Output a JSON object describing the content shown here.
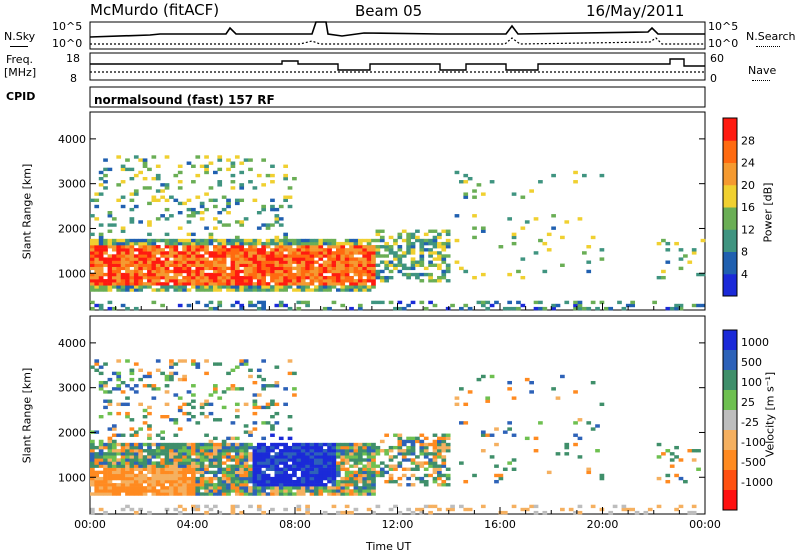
{
  "header": {
    "station": "McMurdo (fitACF)",
    "beam": "Beam 05",
    "date": "16/May/2011"
  },
  "noise_panel": {
    "left_label": "N.Sky",
    "right_label": "N.Search",
    "left_ticks": [
      "10^5",
      "10^0"
    ],
    "right_ticks": [
      "10^5",
      "10^0"
    ]
  },
  "freq_panel": {
    "left_label_line1": "Freq.",
    "left_label_line2": "[MHz]",
    "right_label": "Nave",
    "left_ticks": [
      "18",
      "8"
    ],
    "right_ticks": [
      "60",
      "0"
    ]
  },
  "cpid": {
    "label": "CPID",
    "value": "normalsound (fast) 157 RF"
  },
  "chart_data": [
    {
      "type": "heatmap",
      "name": "power",
      "ylabel": "Slant Range [km]",
      "ylim": [
        180,
        4600
      ],
      "yticks": [
        "4000",
        "3000",
        "2000",
        "1000"
      ],
      "xlim": [
        "00:00",
        "24:00"
      ],
      "colorbar": {
        "label": "Power [dB]",
        "ticks": [
          "28",
          "24",
          "20",
          "16",
          "12",
          "8",
          "4"
        ],
        "range": [
          0,
          32
        ],
        "colors": [
          "#1b2ad8",
          "#2060b0",
          "#3f9480",
          "#6aae55",
          "#f0d030",
          "#f59a30",
          "#ff6a10",
          "#ff1a10"
        ]
      }
    },
    {
      "type": "heatmap",
      "name": "velocity",
      "ylabel": "Slant Range [km]",
      "ylim": [
        180,
        4600
      ],
      "yticks": [
        "4000",
        "3000",
        "2000",
        "1000"
      ],
      "xlabel": "Time UT",
      "xticks": [
        "00:00",
        "04:00",
        "08:00",
        "12:00",
        "16:00",
        "20:00",
        "00:00"
      ],
      "colorbar": {
        "label": "Velocity [m s⁻¹]",
        "ticks": [
          "1000",
          "500",
          "100",
          "25",
          "-25",
          "-100",
          "-500",
          "-1000"
        ],
        "colors": [
          "#1b2ad8",
          "#2d62b8",
          "#3f8f6a",
          "#6ec050",
          "#bdbdbd",
          "#f5b060",
          "#ff8a20",
          "#ff5010",
          "#ff1010"
        ]
      }
    }
  ]
}
